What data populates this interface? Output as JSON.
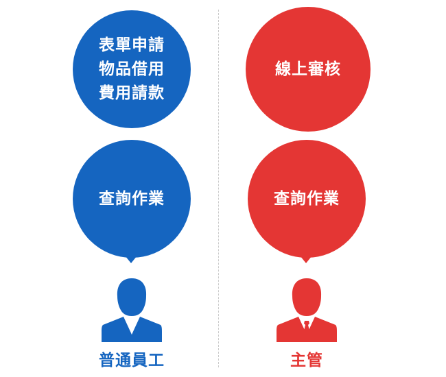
{
  "colors": {
    "employee": "#1565c0",
    "manager": "#e43634"
  },
  "employee": {
    "top_bubble_lines": [
      "表單申請",
      "物品借用",
      "費用請款"
    ],
    "query_bubble": "查詢作業",
    "icon": "person-icon",
    "role_label": "普通員工"
  },
  "manager": {
    "top_bubble_lines": [
      "線上審核"
    ],
    "query_bubble": "查詢作業",
    "icon": "person-with-tie-icon",
    "role_label": "主管"
  }
}
